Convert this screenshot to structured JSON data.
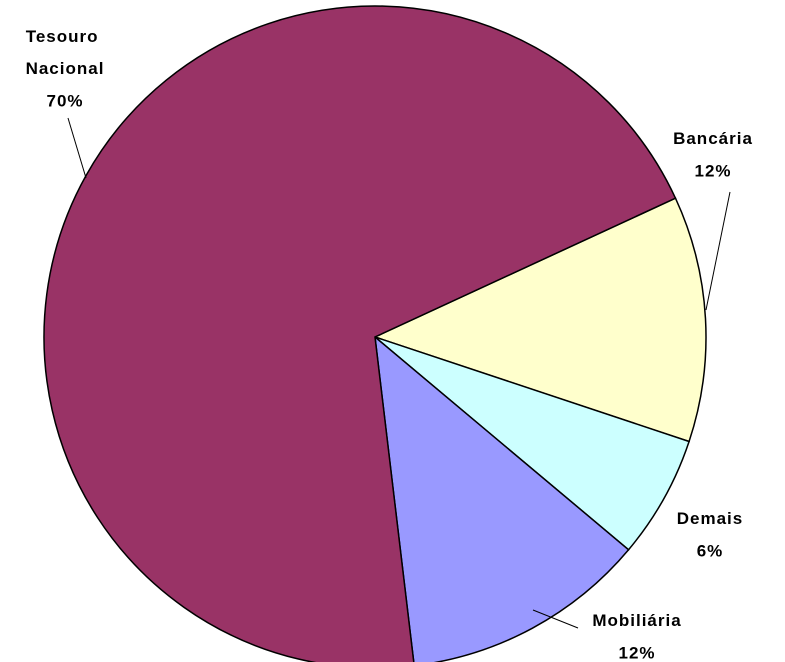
{
  "chart_data": {
    "type": "pie",
    "categories": [
      "Bancária",
      "Demais",
      "Mobiliária",
      "Tesouro Nacional"
    ],
    "values": [
      12,
      6,
      12,
      70
    ],
    "value_labels": [
      "12%",
      "6%",
      "12%",
      "70%"
    ],
    "colors": [
      "#ffffcc",
      "#ccffff",
      "#9999ff",
      "#993366"
    ]
  }
}
